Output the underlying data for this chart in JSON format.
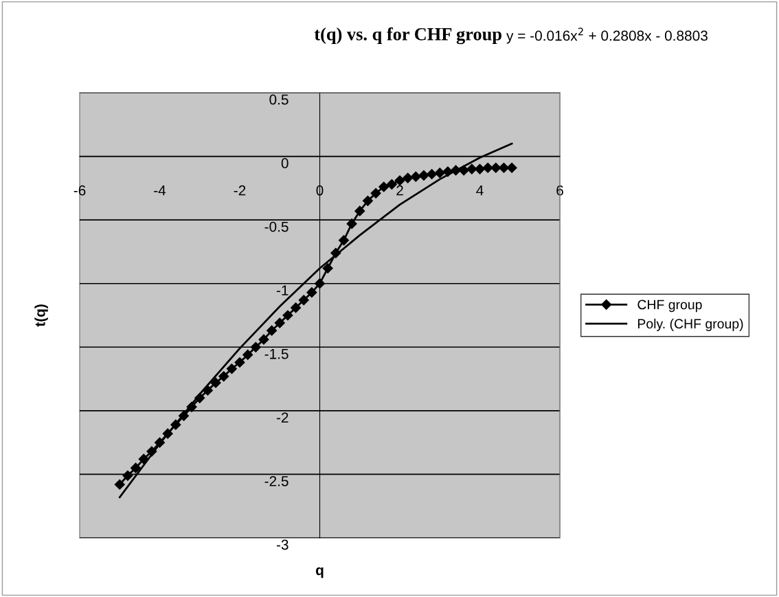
{
  "chart_data": {
    "type": "line",
    "title": "t(q) vs. q for CHF group",
    "xlabel": "q",
    "ylabel": "t(q)",
    "annotations": [
      "y = -0.016x$^{2}$ + 0.2808x - 0.8803"
    ],
    "x": [
      -5,
      -4.8,
      -4.6,
      -4.4,
      -4.2,
      -4,
      -3.8,
      -3.6,
      -3.4,
      -3.2,
      -3,
      -2.8,
      -2.6,
      -2.4,
      -2.2,
      -2,
      -1.8,
      -1.6,
      -1.4,
      -1.2,
      -1,
      -0.8,
      -0.6,
      -0.4,
      -0.2,
      0,
      0.2,
      0.4,
      0.6,
      0.8,
      1,
      1.2,
      1.4,
      1.6,
      1.8,
      2,
      2.2,
      2.4,
      2.6,
      2.8,
      3,
      3.2,
      3.4,
      3.6,
      3.8,
      4,
      4.2,
      4.4,
      4.6,
      4.8
    ],
    "series": [
      {
        "name": "CHF group",
        "color": "#000000",
        "marker": "diamond",
        "values": [
          -2.58,
          -2.51,
          -2.45,
          -2.38,
          -2.32,
          -2.25,
          -2.18,
          -2.11,
          -2.04,
          -1.97,
          -1.9,
          -1.84,
          -1.78,
          -1.73,
          -1.67,
          -1.62,
          -1.56,
          -1.5,
          -1.44,
          -1.37,
          -1.31,
          -1.25,
          -1.19,
          -1.13,
          -1.07,
          -1.0,
          -0.88,
          -0.76,
          -0.66,
          -0.53,
          -0.43,
          -0.35,
          -0.29,
          -0.24,
          -0.22,
          -0.19,
          -0.17,
          -0.16,
          -0.15,
          -0.14,
          -0.13,
          -0.12,
          -0.11,
          -0.11,
          -0.1,
          -0.1,
          -0.09,
          -0.09,
          -0.09,
          -0.09
        ]
      },
      {
        "name": "Poly. (CHF group)",
        "color": "#000000",
        "marker": "none",
        "x": [
          -5,
          -4,
          -3,
          -2,
          -1,
          0,
          1,
          2,
          3,
          4,
          4.8
        ],
        "values": [
          -2.68,
          -2.26,
          -1.87,
          -1.51,
          -1.18,
          -0.88,
          -0.62,
          -0.38,
          -0.18,
          -0.01,
          0.1
        ]
      }
    ],
    "xlim": [
      -6,
      6
    ],
    "xticks": [
      -6,
      -4,
      -2,
      0,
      2,
      4,
      6
    ],
    "ylim": [
      -3,
      0.5
    ],
    "yticks": [
      -3,
      -2.5,
      -2,
      -1.5,
      -1,
      -0.5,
      0,
      0.5
    ],
    "grid": "y",
    "legend": "right"
  }
}
